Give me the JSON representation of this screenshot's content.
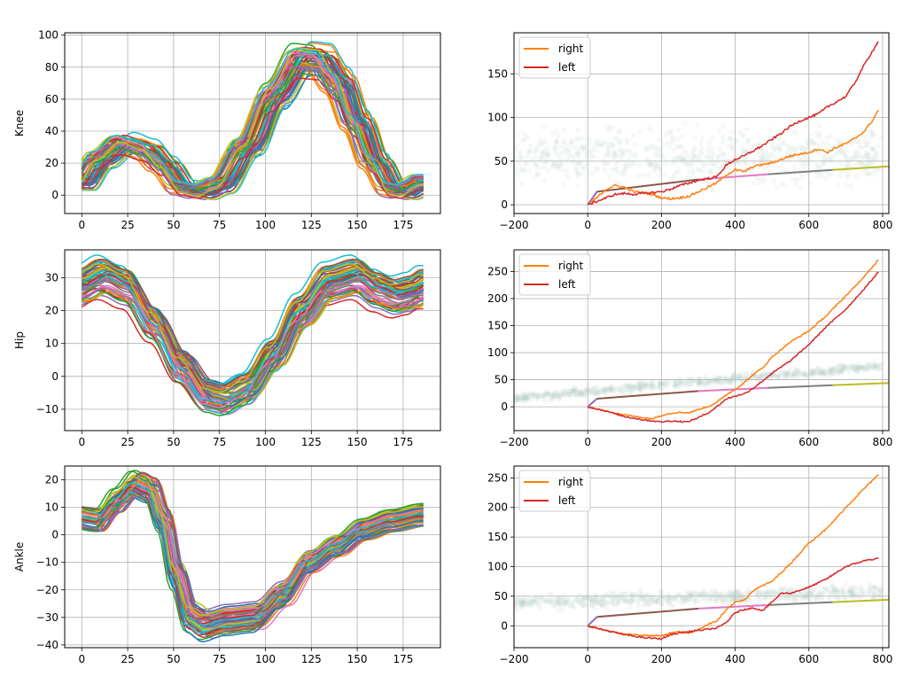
{
  "figure": {
    "rows": 3,
    "cols": 2
  },
  "colors": {
    "tab10": [
      "#1f77b4",
      "#ff7f0e",
      "#2ca02c",
      "#d62728",
      "#9467bd",
      "#8c564b",
      "#e377c2",
      "#7f7f7f",
      "#bcbd22",
      "#17becf"
    ],
    "right": "#ff7f0e",
    "left": "#d62728",
    "scatter": "#b6cfc4",
    "grid": "#b0b0b0"
  },
  "chart_data": [
    {
      "type": "line",
      "panel": "knee-cycles",
      "ylabel": "Knee",
      "xlabel": "",
      "xlim": [
        -9.3,
        195.3
      ],
      "ylim": [
        -11.5,
        101.5
      ],
      "xticks": [
        "0",
        "25",
        "50",
        "75",
        "100",
        "125",
        "150",
        "175"
      ],
      "xtick_values": [
        0,
        25,
        50,
        75,
        100,
        125,
        150,
        175
      ],
      "yticks": [
        "0",
        "20",
        "40",
        "60",
        "80",
        "100"
      ],
      "ytick_values": [
        0,
        20,
        40,
        60,
        80,
        100
      ],
      "grid": true,
      "n_series": 60,
      "x_end": 187,
      "template": {
        "x": [
          0,
          10,
          23,
          35,
          45,
          56,
          65,
          75,
          90,
          105,
          120,
          130,
          140,
          150,
          160,
          170,
          175,
          187
        ],
        "y": [
          8,
          22,
          32,
          28,
          18,
          4,
          2,
          6,
          30,
          62,
          85,
          84,
          70,
          45,
          20,
          3,
          2,
          8
        ]
      },
      "spread": {
        "phase": 8,
        "amp": 0.12,
        "offset": 5
      }
    },
    {
      "type": "line",
      "panel": "knee-cumulative",
      "xlabel": "",
      "ylabel": "",
      "xlim": [
        -200,
        817
      ],
      "ylim": [
        -10,
        197
      ],
      "xticks": [
        "−200",
        "0",
        "200",
        "400",
        "600",
        "800"
      ],
      "xtick_values": [
        -200,
        0,
        200,
        400,
        600,
        800
      ],
      "yticks": [
        "0",
        "50",
        "100",
        "150"
      ],
      "ytick_values": [
        0,
        50,
        100,
        150
      ],
      "grid": true,
      "legend": {
        "location": "top-left",
        "entries": [
          "right",
          "left"
        ]
      },
      "series": [
        {
          "name": "right",
          "x": [
            0,
            25,
            50,
            75,
            100,
            125,
            150,
            175,
            200,
            225,
            250,
            275,
            300,
            325,
            350,
            375,
            400,
            425,
            450,
            475,
            500,
            525,
            550,
            575,
            600,
            625,
            650,
            675,
            700,
            725,
            750,
            775,
            790
          ],
          "y": [
            0,
            8,
            18,
            22,
            20,
            15,
            14,
            12,
            8,
            7,
            8,
            10,
            15,
            20,
            25,
            34,
            40,
            38,
            44,
            46,
            48,
            52,
            56,
            58,
            60,
            64,
            60,
            66,
            70,
            76,
            84,
            98,
            110
          ]
        },
        {
          "name": "left",
          "x": [
            0,
            25,
            50,
            75,
            100,
            125,
            150,
            175,
            200,
            225,
            250,
            275,
            300,
            325,
            350,
            375,
            400,
            425,
            450,
            475,
            500,
            525,
            550,
            575,
            600,
            625,
            650,
            675,
            700,
            725,
            750,
            775,
            790
          ],
          "y": [
            0,
            4,
            8,
            12,
            13,
            12,
            13,
            14,
            15,
            18,
            22,
            25,
            28,
            30,
            32,
            45,
            52,
            56,
            62,
            68,
            75,
            82,
            90,
            96,
            100,
            104,
            112,
            118,
            124,
            140,
            160,
            178,
            188
          ]
        }
      ],
      "baseline_segments": [
        {
          "color_index": 4,
          "x": [
            0,
            25
          ],
          "y": [
            0,
            15
          ]
        },
        {
          "color_index": 5,
          "x": [
            25,
            300
          ],
          "y": [
            15,
            29
          ]
        },
        {
          "color_index": 6,
          "x": [
            300,
            490
          ],
          "y": [
            29,
            35
          ]
        },
        {
          "color_index": 7,
          "x": [
            490,
            665
          ],
          "y": [
            35,
            40
          ]
        },
        {
          "color_index": 8,
          "x": [
            665,
            817
          ],
          "y": [
            40,
            44
          ]
        }
      ],
      "scatter": {
        "x_range": [
          -200,
          800
        ],
        "center": 55,
        "spread": 30,
        "trend": 0
      }
    },
    {
      "type": "line",
      "panel": "hip-cycles",
      "ylabel": "Hip",
      "xlabel": "",
      "xlim": [
        -9.3,
        195.3
      ],
      "ylim": [
        -16.5,
        38.5
      ],
      "xticks": [
        "0",
        "25",
        "50",
        "75",
        "100",
        "125",
        "150",
        "175"
      ],
      "xtick_values": [
        0,
        25,
        50,
        75,
        100,
        125,
        150,
        175
      ],
      "yticks": [
        "−10",
        "0",
        "10",
        "20",
        "30"
      ],
      "ytick_values": [
        -10,
        0,
        10,
        20,
        30
      ],
      "grid": true,
      "n_series": 60,
      "x_end": 187,
      "template": {
        "x": [
          0,
          12,
          25,
          40,
          55,
          70,
          78,
          90,
          105,
          120,
          135,
          150,
          162,
          172,
          180,
          187
        ],
        "y": [
          27,
          30,
          27,
          16,
          3,
          -6,
          -7,
          -4,
          6,
          19,
          28,
          30,
          26,
          24,
          25,
          27
        ]
      },
      "spread": {
        "phase": 4,
        "amp": 0.08,
        "offset": 5
      }
    },
    {
      "type": "line",
      "panel": "hip-cumulative",
      "xlabel": "",
      "ylabel": "",
      "xlim": [
        -200,
        817
      ],
      "ylim": [
        -44,
        290
      ],
      "xticks": [
        "−200",
        "0",
        "200",
        "400",
        "600",
        "800"
      ],
      "xtick_values": [
        -200,
        0,
        200,
        400,
        600,
        800
      ],
      "yticks": [
        "0",
        "50",
        "100",
        "150",
        "200",
        "250"
      ],
      "ytick_values": [
        0,
        50,
        100,
        150,
        200,
        250
      ],
      "grid": true,
      "legend": {
        "location": "top-left",
        "entries": [
          "right",
          "left"
        ]
      },
      "series": [
        {
          "name": "right",
          "x": [
            0,
            50,
            100,
            150,
            175,
            200,
            225,
            250,
            275,
            300,
            325,
            350,
            375,
            400,
            425,
            450,
            475,
            500,
            550,
            600,
            650,
            700,
            750,
            790
          ],
          "y": [
            0,
            -8,
            -15,
            -20,
            -22,
            -16,
            -12,
            -10,
            -11,
            -5,
            0,
            8,
            22,
            32,
            45,
            60,
            72,
            92,
            120,
            140,
            170,
            205,
            240,
            273
          ]
        },
        {
          "name": "left",
          "x": [
            0,
            50,
            100,
            150,
            200,
            225,
            250,
            270,
            300,
            325,
            350,
            375,
            400,
            425,
            450,
            475,
            500,
            550,
            600,
            650,
            700,
            750,
            790
          ],
          "y": [
            0,
            -8,
            -18,
            -24,
            -28,
            -26,
            -27,
            -28,
            -20,
            -12,
            0,
            14,
            20,
            24,
            35,
            48,
            62,
            85,
            115,
            150,
            180,
            218,
            250
          ]
        }
      ],
      "baseline_segments": [
        {
          "color_index": 4,
          "x": [
            0,
            25
          ],
          "y": [
            0,
            15
          ]
        },
        {
          "color_index": 5,
          "x": [
            25,
            300
          ],
          "y": [
            15,
            29
          ]
        },
        {
          "color_index": 6,
          "x": [
            300,
            490
          ],
          "y": [
            29,
            35
          ]
        },
        {
          "color_index": 7,
          "x": [
            490,
            665
          ],
          "y": [
            35,
            40
          ]
        },
        {
          "color_index": 8,
          "x": [
            665,
            817
          ],
          "y": [
            40,
            44
          ]
        }
      ],
      "scatter": {
        "x_range": [
          -200,
          800
        ],
        "center": 28,
        "spread": 8,
        "trend": 0.06
      }
    },
    {
      "type": "line",
      "panel": "ankle-cycles",
      "ylabel": "Ankle",
      "xlabel": "",
      "xlim": [
        -9.3,
        195.3
      ],
      "ylim": [
        -41,
        25
      ],
      "xticks": [
        "0",
        "25",
        "50",
        "75",
        "100",
        "125",
        "150",
        "175"
      ],
      "xtick_values": [
        0,
        25,
        50,
        75,
        100,
        125,
        150,
        175
      ],
      "yticks": [
        "−40",
        "−30",
        "−20",
        "−10",
        "0",
        "10",
        "20"
      ],
      "ytick_values": [
        -40,
        -30,
        -20,
        -10,
        0,
        10,
        20
      ],
      "grid": true,
      "n_series": 60,
      "x_end": 187,
      "template": {
        "x": [
          0,
          10,
          20,
          30,
          38,
          45,
          52,
          60,
          68,
          80,
          95,
          110,
          125,
          140,
          155,
          170,
          187
        ],
        "y": [
          6,
          5,
          12,
          18,
          16,
          5,
          -15,
          -30,
          -33,
          -31,
          -30,
          -22,
          -10,
          -4,
          2,
          5,
          7
        ]
      },
      "spread": {
        "phase": 4,
        "amp": 0.1,
        "offset": 4
      }
    },
    {
      "type": "line",
      "panel": "ankle-cumulative",
      "xlabel": "",
      "ylabel": "",
      "xlim": [
        -200,
        817
      ],
      "ylim": [
        -37,
        270
      ],
      "xticks": [
        "−200",
        "0",
        "200",
        "400",
        "600",
        "800"
      ],
      "xtick_values": [
        -200,
        0,
        200,
        400,
        600,
        800
      ],
      "yticks": [
        "0",
        "50",
        "100",
        "150",
        "200",
        "250"
      ],
      "ytick_values": [
        0,
        50,
        100,
        150,
        200,
        250
      ],
      "grid": true,
      "legend": {
        "location": "top-left",
        "entries": [
          "right",
          "left"
        ]
      },
      "series": [
        {
          "name": "right",
          "x": [
            0,
            50,
            100,
            150,
            200,
            225,
            250,
            275,
            300,
            325,
            350,
            375,
            400,
            425,
            450,
            475,
            500,
            550,
            600,
            650,
            700,
            750,
            790
          ],
          "y": [
            0,
            -8,
            -14,
            -16,
            -17,
            -12,
            -10,
            -12,
            -6,
            2,
            8,
            26,
            40,
            44,
            60,
            68,
            75,
            105,
            140,
            165,
            200,
            232,
            256
          ]
        },
        {
          "name": "left",
          "x": [
            0,
            50,
            100,
            150,
            200,
            225,
            250,
            275,
            300,
            325,
            350,
            375,
            400,
            425,
            450,
            475,
            500,
            525,
            550,
            600,
            650,
            700,
            750,
            790
          ],
          "y": [
            0,
            -8,
            -15,
            -20,
            -22,
            -15,
            -12,
            -10,
            -8,
            -6,
            -4,
            5,
            22,
            28,
            30,
            26,
            40,
            55,
            55,
            65,
            80,
            100,
            110,
            114
          ]
        }
      ],
      "baseline_segments": [
        {
          "color_index": 4,
          "x": [
            0,
            25
          ],
          "y": [
            0,
            15
          ]
        },
        {
          "color_index": 5,
          "x": [
            25,
            300
          ],
          "y": [
            15,
            29
          ]
        },
        {
          "color_index": 6,
          "x": [
            300,
            490
          ],
          "y": [
            29,
            35
          ]
        },
        {
          "color_index": 7,
          "x": [
            490,
            665
          ],
          "y": [
            35,
            40
          ]
        },
        {
          "color_index": 8,
          "x": [
            665,
            817
          ],
          "y": [
            40,
            44
          ]
        }
      ],
      "scatter": {
        "x_range": [
          -200,
          800
        ],
        "center": 42,
        "spread": 12,
        "trend": 0.02
      }
    }
  ]
}
